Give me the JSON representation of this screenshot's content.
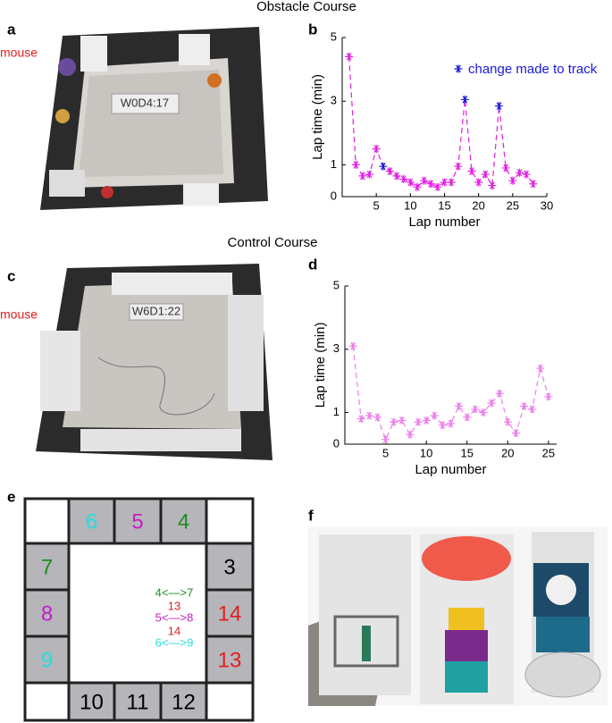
{
  "figure": {
    "top_title": "Obstacle Course",
    "mid_title": "Control Course",
    "panels": [
      "a",
      "b",
      "c",
      "d",
      "e",
      "f"
    ],
    "photo_a": {
      "mouse": "mouse",
      "tag": "W0D4:17"
    },
    "photo_c": {
      "mouse": "mouse",
      "tag": "W6D1:22"
    }
  },
  "chart_data": [
    {
      "type": "line",
      "x_label": "Lap number",
      "y_label": "Lap time (min)",
      "x": [
        1,
        2,
        3,
        4,
        5,
        6,
        7,
        8,
        9,
        10,
        11,
        12,
        13,
        14,
        15,
        16,
        17,
        18,
        19,
        20,
        21,
        22,
        23,
        24,
        25,
        26,
        27,
        28
      ],
      "series": [
        {
          "color": "#e21ee2",
          "values": [
            4.4,
            1.0,
            0.65,
            0.7,
            1.5,
            0.95,
            0.8,
            0.65,
            0.55,
            0.45,
            0.3,
            0.5,
            0.4,
            0.3,
            0.45,
            0.45,
            0.95,
            3.05,
            0.8,
            0.45,
            0.7,
            0.35,
            2.85,
            0.9,
            0.5,
            0.75,
            0.7,
            0.4
          ],
          "point_colors": [
            "#e21ee2",
            "#e21ee2",
            "#e21ee2",
            "#e21ee2",
            "#e21ee2",
            "#1a1ad8",
            "#e21ee2",
            "#e21ee2",
            "#e21ee2",
            "#e21ee2",
            "#e21ee2",
            "#e21ee2",
            "#e21ee2",
            "#e21ee2",
            "#e21ee2",
            "#e21ee2",
            "#e21ee2",
            "#1a1ad8",
            "#e21ee2",
            "#e21ee2",
            "#e21ee2",
            "#e21ee2",
            "#1a1ad8",
            "#e21ee2",
            "#e21ee2",
            "#e21ee2",
            "#e21ee2",
            "#e21ee2"
          ]
        }
      ],
      "legend": {
        "label": "change made to track",
        "color": "#1a1ad8"
      },
      "xlim": [
        0,
        30
      ],
      "xticks": [
        5,
        10,
        15,
        20,
        25,
        30
      ],
      "ylim": [
        0,
        5
      ],
      "yticks": [
        0,
        1,
        3,
        5
      ]
    },
    {
      "type": "line",
      "x_label": "Lap number",
      "y_label": "Lap time (min)",
      "x": [
        1,
        2,
        3,
        4,
        5,
        6,
        7,
        8,
        9,
        10,
        11,
        12,
        13,
        14,
        15,
        16,
        17,
        18,
        19,
        20,
        21,
        22,
        23,
        24,
        25
      ],
      "series": [
        {
          "color": "#ec7eec",
          "values": [
            3.1,
            0.8,
            0.9,
            0.85,
            0.15,
            0.7,
            0.75,
            0.3,
            0.7,
            0.75,
            0.9,
            0.6,
            0.65,
            1.2,
            0.85,
            1.1,
            1.0,
            1.3,
            1.6,
            0.7,
            0.35,
            1.2,
            1.1,
            2.4,
            1.5
          ]
        }
      ],
      "xlim": [
        0,
        26
      ],
      "xticks": [
        5,
        10,
        15,
        20,
        25
      ],
      "ylim": [
        0,
        5
      ],
      "yticks": [
        0,
        1,
        3,
        5
      ]
    }
  ],
  "diagram": {
    "cells": [
      {
        "label": "6",
        "color": "#22dede"
      },
      {
        "label": "5",
        "color": "#c41ec4"
      },
      {
        "label": "4",
        "color": "#1e8c1e"
      },
      {
        "label": "7",
        "color": "#1e8c1e"
      },
      {
        "label": "8",
        "color": "#c41ec4"
      },
      {
        "label": "9",
        "color": "#22dede"
      },
      {
        "label": "3",
        "color": "#000000"
      },
      {
        "label": "14",
        "color": "#e02020"
      },
      {
        "label": "13",
        "color": "#e02020"
      },
      {
        "label": "10",
        "color": "#000000"
      },
      {
        "label": "11",
        "color": "#000000"
      },
      {
        "label": "12",
        "color": "#000000"
      }
    ],
    "pairs": [
      {
        "text": "4<—>7",
        "color": "#1e8c1e"
      },
      {
        "text": "13",
        "color": "#e02020"
      },
      {
        "text": "5<—>8",
        "color": "#c41ec4"
      },
      {
        "text": "14",
        "color": "#e02020"
      },
      {
        "text": "6<—>9",
        "color": "#22dede"
      }
    ]
  }
}
